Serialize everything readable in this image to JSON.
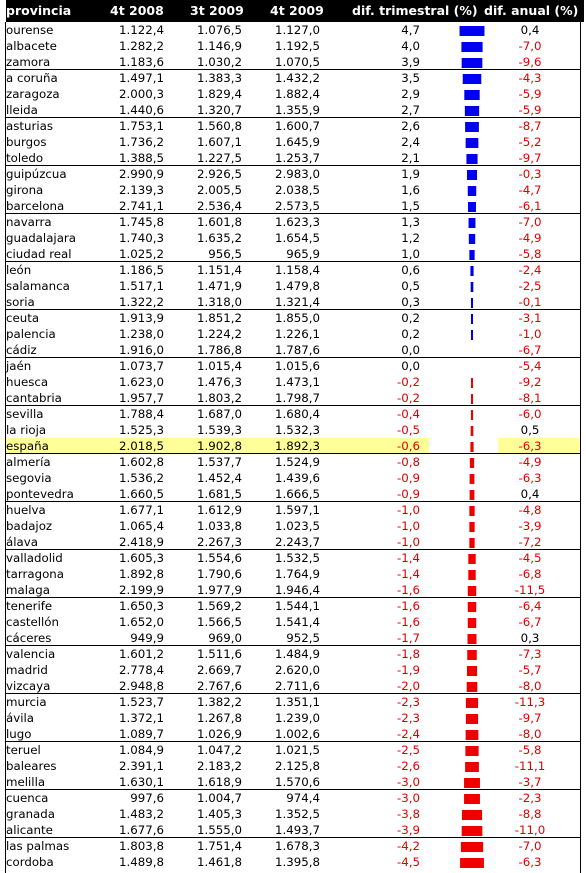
{
  "chart_data": {
    "type": "table",
    "columns": [
      "provincia",
      "4t 2008",
      "3t 2009",
      "4t 2009",
      "dif. trimestral (%)",
      "dif. anual (%)"
    ],
    "rows": [
      [
        "ourense",
        "1.122,4",
        "1.076,5",
        "1.127,0",
        "4,7",
        "0,4"
      ],
      [
        "albacete",
        "1.282,2",
        "1.146,9",
        "1.192,5",
        "4,0",
        "-7,0"
      ],
      [
        "zamora",
        "1.183,6",
        "1.030,2",
        "1.070,5",
        "3,9",
        "-9,6"
      ],
      [
        "a coruña",
        "1.497,1",
        "1.383,3",
        "1.432,2",
        "3,5",
        "-4,3"
      ],
      [
        "zaragoza",
        "2.000,3",
        "1.829,4",
        "1.882,4",
        "2,9",
        "-5,9"
      ],
      [
        "lleida",
        "1.440,6",
        "1.320,7",
        "1.355,9",
        "2,7",
        "-5,9"
      ],
      [
        "asturias",
        "1.753,1",
        "1.560,8",
        "1.600,7",
        "2,6",
        "-8,7"
      ],
      [
        "burgos",
        "1.736,2",
        "1.607,1",
        "1.645,9",
        "2,4",
        "-5,2"
      ],
      [
        "toledo",
        "1.388,5",
        "1.227,5",
        "1.253,7",
        "2,1",
        "-9,7"
      ],
      [
        "guipúzcua",
        "2.990,9",
        "2.926,5",
        "2.983,0",
        "1,9",
        "-0,3"
      ],
      [
        "girona",
        "2.139,3",
        "2.005,5",
        "2.038,5",
        "1,6",
        "-4,7"
      ],
      [
        "barcelona",
        "2.741,1",
        "2.536,4",
        "2.573,5",
        "1,5",
        "-6,1"
      ],
      [
        "navarra",
        "1.745,8",
        "1.601,8",
        "1.623,3",
        "1,3",
        "-7,0"
      ],
      [
        "guadalajara",
        "1.740,3",
        "1.635,2",
        "1.654,5",
        "1,2",
        "-4,9"
      ],
      [
        "ciudad real",
        "1.025,2",
        "956,5",
        "965,9",
        "1,0",
        "-5,8"
      ],
      [
        "león",
        "1.186,5",
        "1.151,4",
        "1.158,4",
        "0,6",
        "-2,4"
      ],
      [
        "salamanca",
        "1.517,1",
        "1.471,9",
        "1.479,8",
        "0,5",
        "-2,5"
      ],
      [
        "soria",
        "1.322,2",
        "1.318,0",
        "1.321,4",
        "0,3",
        "-0,1"
      ],
      [
        "ceuta",
        "1.913,9",
        "1.851,2",
        "1.855,0",
        "0,2",
        "-3,1"
      ],
      [
        "palencia",
        "1.238,0",
        "1.224,2",
        "1.226,1",
        "0,2",
        "-1,0"
      ],
      [
        "cádiz",
        "1.916,0",
        "1.786,8",
        "1.787,6",
        "0,0",
        "-6,7"
      ],
      [
        "jaén",
        "1.073,7",
        "1.015,4",
        "1.015,6",
        "0,0",
        "-5,4"
      ],
      [
        "huesca",
        "1.623,0",
        "1.476,3",
        "1.473,1",
        "-0,2",
        "-9,2"
      ],
      [
        "cantabria",
        "1.957,7",
        "1.803,2",
        "1.798,7",
        "-0,2",
        "-8,1"
      ],
      [
        "sevilla",
        "1.788,4",
        "1.687,0",
        "1.680,4",
        "-0,4",
        "-6,0"
      ],
      [
        "la rioja",
        "1.525,3",
        "1.539,3",
        "1.532,3",
        "-0,5",
        "0,5"
      ],
      [
        "españa",
        "2.018,5",
        "1.902,8",
        "1.892,3",
        "-0,6",
        "-6,3"
      ],
      [
        "almería",
        "1.602,8",
        "1.537,7",
        "1.524,9",
        "-0,8",
        "-4,9"
      ],
      [
        "segovia",
        "1.536,2",
        "1.452,4",
        "1.439,6",
        "-0,9",
        "-6,3"
      ],
      [
        "pontevedra",
        "1.660,5",
        "1.681,5",
        "1.666,5",
        "-0,9",
        "0,4"
      ],
      [
        "huelva",
        "1.677,1",
        "1.612,9",
        "1.597,1",
        "-1,0",
        "-4,8"
      ],
      [
        "badajoz",
        "1.065,4",
        "1.033,8",
        "1.023,5",
        "-1,0",
        "-3,9"
      ],
      [
        "álava",
        "2.418,9",
        "2.267,3",
        "2.243,7",
        "-1,0",
        "-7,2"
      ],
      [
        "valladolid",
        "1.605,3",
        "1.554,6",
        "1.532,5",
        "-1,4",
        "-4,5"
      ],
      [
        "tarragona",
        "1.892,8",
        "1.790,6",
        "1.764,9",
        "-1,4",
        "-6,8"
      ],
      [
        "malaga",
        "2.199,9",
        "1.977,9",
        "1.946,4",
        "-1,6",
        "-11,5"
      ],
      [
        "tenerife",
        "1.650,3",
        "1.569,2",
        "1.544,1",
        "-1,6",
        "-6,4"
      ],
      [
        "castellón",
        "1.652,0",
        "1.566,5",
        "1.541,4",
        "-1,6",
        "-6,7"
      ],
      [
        "cáceres",
        "949,9",
        "969,0",
        "952,5",
        "-1,7",
        "0,3"
      ],
      [
        "valencia",
        "1.601,2",
        "1.511,6",
        "1.484,9",
        "-1,8",
        "-7,3"
      ],
      [
        "madrid",
        "2.778,4",
        "2.669,7",
        "2.620,0",
        "-1,9",
        "-5,7"
      ],
      [
        "vizcaya",
        "2.948,8",
        "2.767,6",
        "2.711,6",
        "-2,0",
        "-8,0"
      ],
      [
        "murcia",
        "1.523,7",
        "1.382,2",
        "1.351,1",
        "-2,3",
        "-11,3"
      ],
      [
        "ávila",
        "1.372,1",
        "1.267,8",
        "1.239,0",
        "-2,3",
        "-9,7"
      ],
      [
        "lugo",
        "1.089,7",
        "1.026,9",
        "1.002,6",
        "-2,4",
        "-8,0"
      ],
      [
        "teruel",
        "1.084,9",
        "1.047,2",
        "1.021,5",
        "-2,5",
        "-5,8"
      ],
      [
        "baleares",
        "2.391,1",
        "2.183,2",
        "2.125,8",
        "-2,6",
        "-11,1"
      ],
      [
        "melilla",
        "1.630,1",
        "1.618,9",
        "1.570,6",
        "-3,0",
        "-3,7"
      ],
      [
        "cuenca",
        "997,6",
        "1.004,7",
        "974,4",
        "-3,0",
        "-2,3"
      ],
      [
        "granada",
        "1.483,2",
        "1.405,3",
        "1.352,5",
        "-3,8",
        "-8,8"
      ],
      [
        "alicante",
        "1.677,6",
        "1.555,0",
        "1.493,7",
        "-3,9",
        "-11,0"
      ],
      [
        "las palmas",
        "1.803,8",
        "1.751,4",
        "1.678,3",
        "-4,2",
        "-7,0"
      ],
      [
        "cordoba",
        "1.489,8",
        "1.461,8",
        "1.395,8",
        "-4,5",
        "-6,3"
      ]
    ],
    "highlight_row": "españa",
    "bar_column": "dif. trimestral (%)",
    "colors": {
      "positive_bar": "#0000ee",
      "negative_bar": "#ee0000",
      "negative_text": "#e00000",
      "highlight": "#ffff99",
      "header_bg": "#000000",
      "header_text": "#ffffff"
    }
  }
}
